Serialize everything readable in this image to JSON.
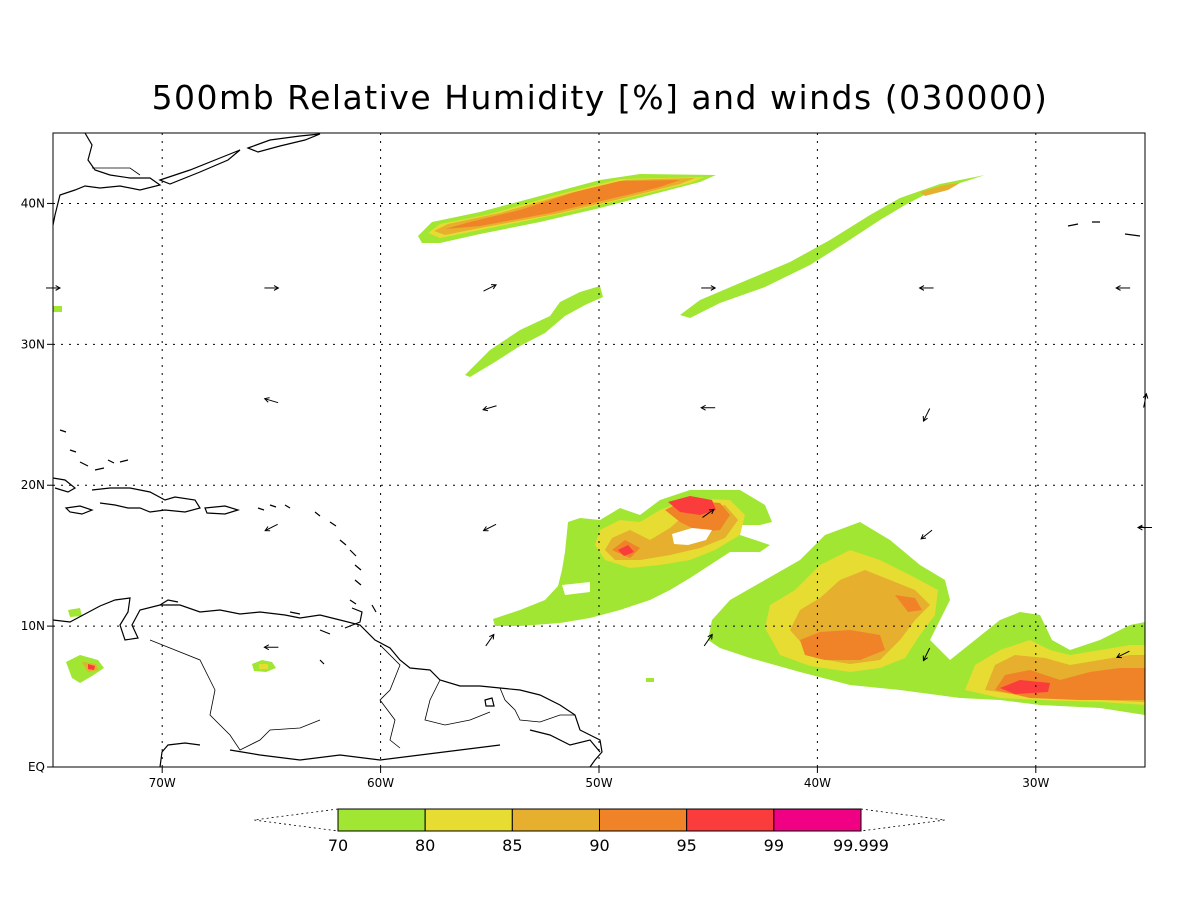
{
  "title": "500mb Relative Humidity [%] and winds (030000)",
  "map": {
    "projection": "lat-lon",
    "lon_range": [
      -75,
      -25
    ],
    "lat_range": [
      0,
      45
    ],
    "grid": "dotted",
    "region": "Tropical North Atlantic / Caribbean"
  },
  "axes": {
    "x_ticks": [
      {
        "label": "70W",
        "lon": -70
      },
      {
        "label": "60W",
        "lon": -60
      },
      {
        "label": "50W",
        "lon": -50
      },
      {
        "label": "40W",
        "lon": -40
      },
      {
        "label": "30W",
        "lon": -30
      }
    ],
    "y_ticks": [
      {
        "label": "EQ",
        "lat": 0
      },
      {
        "label": "10N",
        "lat": 10
      },
      {
        "label": "20N",
        "lat": 20
      },
      {
        "label": "30N",
        "lat": 30
      },
      {
        "label": "40N",
        "lat": 40
      }
    ]
  },
  "colorbar": {
    "levels": [
      "70",
      "80",
      "85",
      "90",
      "95",
      "99",
      "99.999"
    ],
    "colors": [
      "#a0e632",
      "#e6dc32",
      "#e6af2d",
      "#f08228",
      "#fa3c3c",
      "#f00082"
    ]
  },
  "chart_data": {
    "type": "heatmap",
    "title": "500mb Relative Humidity [%] and winds (030000)",
    "xlabel": "",
    "ylabel": "",
    "x_ticks": [
      "70W",
      "60W",
      "50W",
      "40W",
      "30W"
    ],
    "y_ticks": [
      "EQ",
      "10N",
      "20N",
      "30N",
      "40N"
    ],
    "xlim": [
      -75,
      -25
    ],
    "ylim": [
      0,
      45
    ],
    "units": "%",
    "contour_levels": [
      70,
      80,
      85,
      90,
      95,
      99,
      99.999
    ],
    "humidity_features": [
      {
        "lon": -52,
        "lat": 39.5,
        "max_level": 90
      },
      {
        "lon": -53,
        "lat": 32,
        "max_level": 70
      },
      {
        "lon": -41.5,
        "lat": 34,
        "max_level": 70
      },
      {
        "lon": -46,
        "lat": 18.5,
        "max_level": 95
      },
      {
        "lon": -49,
        "lat": 15,
        "max_level": 95
      },
      {
        "lon": -38,
        "lat": 10.5,
        "max_level": 90
      },
      {
        "lon": -30,
        "lat": 6,
        "max_level": 95
      },
      {
        "lon": -73,
        "lat": 7,
        "max_level": 95
      },
      {
        "lon": -65.5,
        "lat": 7,
        "max_level": 80
      }
    ],
    "wind_vectors": [
      {
        "lon": -75,
        "lat": 34,
        "u": 1,
        "v": 0
      },
      {
        "lon": -65,
        "lat": 34,
        "u": 1,
        "v": 0
      },
      {
        "lon": -55,
        "lat": 34,
        "u": 1,
        "v": 0.5
      },
      {
        "lon": -45,
        "lat": 34,
        "u": 1,
        "v": 0
      },
      {
        "lon": -35,
        "lat": 34,
        "u": -1,
        "v": 0
      },
      {
        "lon": -26,
        "lat": 34,
        "u": -1,
        "v": 0
      },
      {
        "lon": -65,
        "lat": 26,
        "u": -1,
        "v": 0.3
      },
      {
        "lon": -55,
        "lat": 25.5,
        "u": -1,
        "v": -0.3
      },
      {
        "lon": -45,
        "lat": 25.5,
        "u": -1,
        "v": 0
      },
      {
        "lon": -35,
        "lat": 25,
        "u": -0.5,
        "v": -1
      },
      {
        "lon": -25,
        "lat": 26,
        "u": 0.2,
        "v": 1
      },
      {
        "lon": -65,
        "lat": 17,
        "u": -1,
        "v": -0.5
      },
      {
        "lon": -55,
        "lat": 17,
        "u": -1,
        "v": -0.5
      },
      {
        "lon": -45,
        "lat": 18,
        "u": 1,
        "v": 0.7
      },
      {
        "lon": -35,
        "lat": 16.5,
        "u": -1,
        "v": -0.8
      },
      {
        "lon": -25,
        "lat": 17,
        "u": -1,
        "v": 0
      },
      {
        "lon": -65,
        "lat": 8.5,
        "u": -1,
        "v": 0
      },
      {
        "lon": -55,
        "lat": 9,
        "u": 0.7,
        "v": 1
      },
      {
        "lon": -45,
        "lat": 9,
        "u": 0.7,
        "v": 1
      },
      {
        "lon": -35,
        "lat": 8,
        "u": -0.5,
        "v": -1
      },
      {
        "lon": -26,
        "lat": 8,
        "u": -1,
        "v": -0.5
      }
    ]
  }
}
